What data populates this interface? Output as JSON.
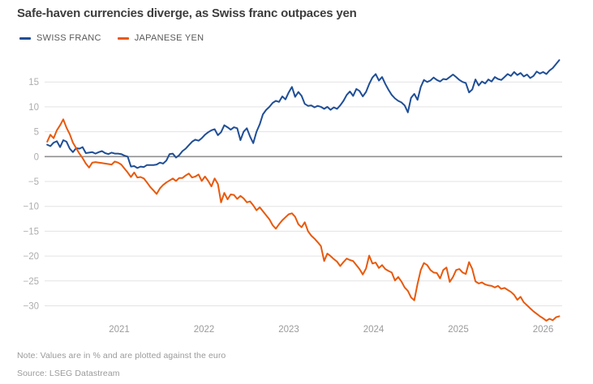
{
  "chart_data": {
    "type": "line",
    "title": "Safe-haven currencies diverge, as Swiss franc outpaces yen",
    "note": "Note: Values are in % and are plotted against the euro",
    "source": "Source: LSEG Datastream",
    "unit": "%",
    "x_axis": {
      "start": 2020.15,
      "end": 2026.19,
      "ticks": [
        {
          "value": 2021,
          "label": "2021"
        },
        {
          "value": 2022,
          "label": "2022"
        },
        {
          "value": 2023,
          "label": "2023"
        },
        {
          "value": 2024,
          "label": "2024"
        },
        {
          "value": 2025,
          "label": "2025"
        },
        {
          "value": 2026,
          "label": "2026"
        }
      ]
    },
    "y_axis": {
      "min": -34,
      "max": 20,
      "ticks": [
        {
          "value": 15,
          "label": "15"
        },
        {
          "value": 10,
          "label": "10"
        },
        {
          "value": 5,
          "label": "5"
        },
        {
          "value": 0,
          "label": "0"
        },
        {
          "value": -5,
          "label": "−5"
        },
        {
          "value": -10,
          "label": "−10"
        },
        {
          "value": -15,
          "label": "−15"
        },
        {
          "value": -20,
          "label": "−20"
        },
        {
          "value": -25,
          "label": "−25"
        },
        {
          "value": -30,
          "label": "−30"
        }
      ]
    },
    "colors": {
      "grid": "#e3e3e3",
      "zero_line": "#8f8f8f",
      "axis_text": "#adadad",
      "x_axis_text": "#9b9b9b"
    },
    "series": [
      {
        "name": "SWISS FRANC",
        "color": "#1f4e96",
        "values": [
          2.4,
          2.1,
          2.8,
          3.1,
          1.9,
          3.3,
          3.0,
          1.6,
          0.9,
          1.7,
          1.6,
          1.9,
          0.7,
          0.8,
          0.9,
          0.6,
          0.9,
          1.1,
          0.7,
          0.5,
          0.8,
          0.6,
          0.6,
          0.5,
          0.2,
          0.0,
          -2.0,
          -1.9,
          -2.3,
          -2.0,
          -2.1,
          -1.7,
          -1.7,
          -1.7,
          -1.6,
          -1.2,
          -1.4,
          -0.8,
          0.5,
          0.6,
          -0.2,
          0.3,
          1.1,
          1.6,
          2.3,
          3.0,
          3.4,
          3.2,
          3.7,
          4.4,
          4.9,
          5.3,
          5.5,
          4.3,
          4.9,
          6.3,
          5.9,
          5.4,
          5.9,
          5.7,
          3.3,
          5.0,
          5.7,
          4.0,
          2.7,
          5.0,
          6.5,
          8.5,
          9.4,
          10.0,
          10.8,
          11.2,
          11.0,
          12.1,
          11.5,
          12.9,
          14.0,
          12.0,
          13.0,
          12.2,
          10.6,
          10.2,
          10.3,
          9.9,
          10.2,
          10.0,
          9.6,
          10.0,
          9.4,
          9.9,
          9.6,
          10.3,
          11.2,
          12.4,
          13.1,
          12.2,
          13.6,
          13.2,
          12.1,
          13.0,
          14.6,
          15.9,
          16.6,
          15.3,
          16.0,
          14.6,
          13.4,
          12.4,
          11.7,
          11.2,
          10.9,
          10.3,
          8.9,
          11.8,
          12.6,
          11.4,
          14.0,
          15.4,
          15.0,
          15.3,
          15.9,
          15.4,
          15.1,
          15.6,
          15.5,
          16.0,
          16.5,
          16.0,
          15.4,
          15.0,
          14.8,
          12.9,
          13.5,
          15.5,
          14.3,
          15.1,
          14.7,
          15.5,
          15.1,
          16.0,
          15.6,
          15.4,
          16.0,
          16.6,
          16.2,
          17.0,
          16.4,
          16.8,
          16.1,
          16.5,
          15.8,
          16.2,
          17.1,
          16.7,
          17.0,
          16.6,
          17.3,
          17.8,
          18.6,
          19.4
        ]
      },
      {
        "name": "JAPANESE YEN",
        "color": "#e8590c",
        "values": [
          3.0,
          4.4,
          3.7,
          5.3,
          6.3,
          7.5,
          5.8,
          4.5,
          2.8,
          1.7,
          0.6,
          -0.3,
          -1.4,
          -2.2,
          -1.2,
          -1.1,
          -1.2,
          -1.3,
          -1.4,
          -1.5,
          -1.6,
          -1.0,
          -1.2,
          -1.6,
          -2.4,
          -3.2,
          -4.1,
          -3.2,
          -4.2,
          -4.1,
          -4.4,
          -5.2,
          -6.1,
          -6.8,
          -7.5,
          -6.4,
          -5.7,
          -5.2,
          -4.8,
          -4.4,
          -4.9,
          -4.3,
          -4.3,
          -3.8,
          -3.4,
          -4.2,
          -4.0,
          -3.6,
          -4.9,
          -4.0,
          -4.9,
          -6.0,
          -4.4,
          -5.5,
          -9.2,
          -7.3,
          -8.6,
          -7.6,
          -7.7,
          -8.5,
          -7.9,
          -8.4,
          -9.2,
          -9.0,
          -9.8,
          -10.8,
          -10.2,
          -11.0,
          -11.8,
          -12.6,
          -13.8,
          -14.5,
          -13.6,
          -12.8,
          -12.2,
          -11.6,
          -11.4,
          -12.1,
          -13.6,
          -14.2,
          -13.2,
          -15.0,
          -15.9,
          -16.5,
          -17.2,
          -18.0,
          -21.0,
          -19.5,
          -20.0,
          -20.6,
          -21.1,
          -22.0,
          -21.2,
          -20.5,
          -20.8,
          -21.0,
          -21.8,
          -22.6,
          -23.7,
          -22.5,
          -19.9,
          -21.5,
          -21.3,
          -22.4,
          -21.8,
          -22.6,
          -23.0,
          -23.3,
          -24.9,
          -24.2,
          -25.1,
          -26.3,
          -27.0,
          -28.3,
          -28.9,
          -25.6,
          -22.8,
          -21.4,
          -21.8,
          -22.8,
          -23.3,
          -23.4,
          -24.5,
          -22.8,
          -22.3,
          -25.2,
          -24.2,
          -22.8,
          -22.6,
          -23.3,
          -23.6,
          -21.2,
          -22.6,
          -25.1,
          -25.5,
          -25.3,
          -25.7,
          -25.9,
          -26.0,
          -26.3,
          -26.0,
          -26.6,
          -26.4,
          -26.8,
          -27.2,
          -27.8,
          -28.8,
          -28.2,
          -29.3,
          -29.9,
          -30.5,
          -31.1,
          -31.6,
          -32.1,
          -32.5,
          -33.0,
          -32.6,
          -32.9,
          -32.3,
          -32.1
        ]
      }
    ]
  }
}
